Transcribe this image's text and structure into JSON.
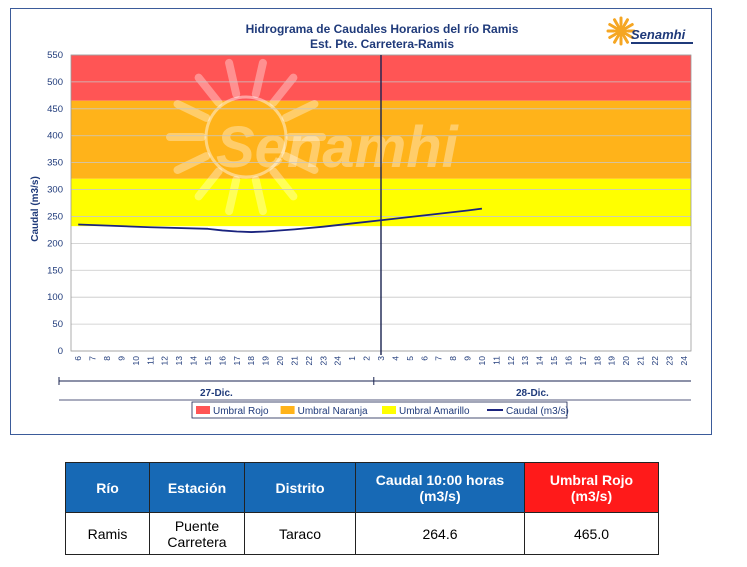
{
  "chart_data": {
    "type": "line",
    "title": "Hidrograma de Caudales Horarios del río Ramis",
    "subtitle": "Est. Pte. Carretera-Ramis",
    "ylabel": "Caudal  (m3/s)",
    "ylim": [
      0,
      550
    ],
    "yticks": [
      0,
      50,
      100,
      150,
      200,
      250,
      300,
      350,
      400,
      450,
      500,
      550
    ],
    "xticks": [
      "6",
      "7",
      "8",
      "9",
      "10",
      "11",
      "12",
      "13",
      "14",
      "15",
      "16",
      "17",
      "18",
      "19",
      "20",
      "21",
      "22",
      "23",
      "24",
      "1",
      "2",
      "3",
      "4",
      "5",
      "6",
      "7",
      "8",
      "9",
      "10",
      "11",
      "12",
      "13",
      "14",
      "15",
      "16",
      "17",
      "18",
      "19",
      "20",
      "21",
      "22",
      "23",
      "24"
    ],
    "days": [
      {
        "label": "27-Dic.",
        "span": [
          0,
          21
        ]
      },
      {
        "label": "28-Dic.",
        "span": [
          21,
          43
        ]
      }
    ],
    "current_time_index": 21,
    "thresholds": [
      {
        "name": "Umbral Rojo",
        "from": 465,
        "to": 550,
        "color": "#ff5555"
      },
      {
        "name": "Umbral Naranja",
        "from": 320,
        "to": 465,
        "color": "#ffb31a"
      },
      {
        "name": "Umbral Amarillo",
        "from": 232,
        "to": 320,
        "color": "#ffff00"
      }
    ],
    "series": [
      {
        "name": "Caudal (m3/s)",
        "color": "#1a237e",
        "x_index": [
          0,
          5,
          9,
          10,
          11,
          12,
          13,
          15,
          17,
          19,
          21,
          23,
          25,
          27,
          28
        ],
        "values": [
          235,
          230,
          227,
          224,
          222,
          221,
          222,
          226,
          231,
          237,
          243,
          249,
          255,
          261,
          264.6
        ]
      }
    ],
    "legend_position": "bottom"
  },
  "legend": [
    {
      "label": "Umbral Rojo",
      "color": "#ff5555",
      "kind": "box"
    },
    {
      "label": "Umbral Naranja",
      "color": "#ffb31a",
      "kind": "box"
    },
    {
      "label": "Umbral Amarillo",
      "color": "#ffff00",
      "kind": "box"
    },
    {
      "label": "Caudal (m3/s)",
      "color": "#1a237e",
      "kind": "line"
    }
  ],
  "logo": {
    "text": "Senamhi",
    "watermark": "Senamhi",
    "sun_color": "#f5a623"
  },
  "table": {
    "headers": [
      "Río",
      "Estación",
      "Distrito",
      "Caudal  10:00 horas (m3/s)",
      "Umbral Rojo (m3/s)"
    ],
    "row": [
      "Ramis",
      "Puente Carretera",
      "Taraco",
      "264.6",
      "465.0"
    ]
  }
}
